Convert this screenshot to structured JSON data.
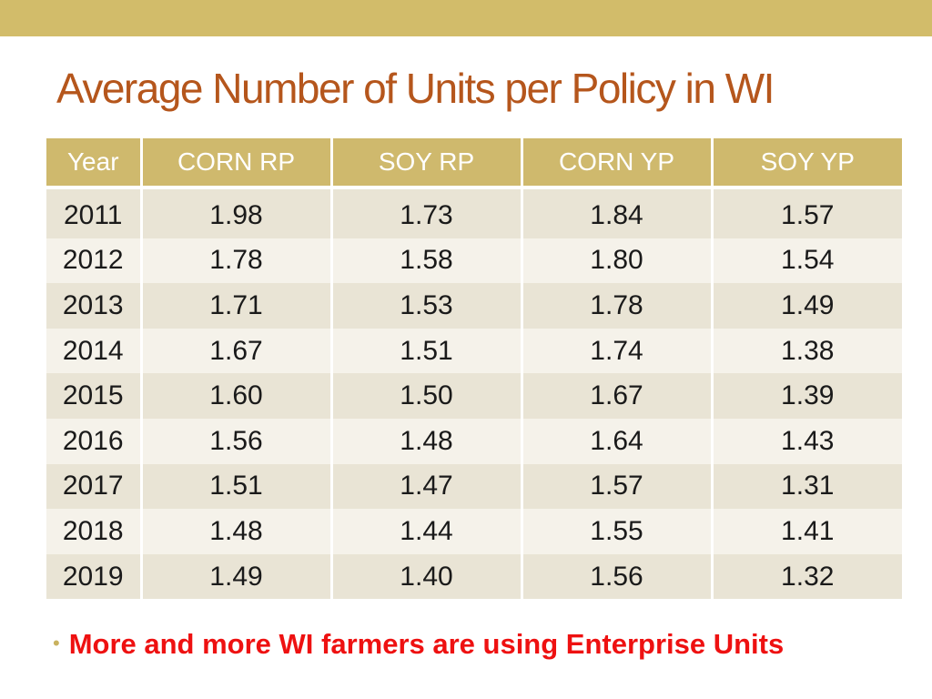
{
  "slide": {
    "title": "Average Number of Units per Policy in WI",
    "bullet": "More and more WI farmers are using Enterprise Units",
    "bullet_marker": "•",
    "colors": {
      "top_bar": "#d2bc6a",
      "title": "#b5561c",
      "header_bg": "#cfb96d",
      "row_odd": "#e9e4d5",
      "row_even": "#f5f2ea",
      "bullet_text": "#ee1111"
    }
  },
  "chart_data": {
    "type": "table",
    "columns": [
      "Year",
      "CORN RP",
      "SOY RP",
      "CORN YP",
      "SOY YP"
    ],
    "rows": [
      [
        "2011",
        "1.98",
        "1.73",
        "1.84",
        "1.57"
      ],
      [
        "2012",
        "1.78",
        "1.58",
        "1.80",
        "1.54"
      ],
      [
        "2013",
        "1.71",
        "1.53",
        "1.78",
        "1.49"
      ],
      [
        "2014",
        "1.67",
        "1.51",
        "1.74",
        "1.38"
      ],
      [
        "2015",
        "1.60",
        "1.50",
        "1.67",
        "1.39"
      ],
      [
        "2016",
        "1.56",
        "1.48",
        "1.64",
        "1.43"
      ],
      [
        "2017",
        "1.51",
        "1.47",
        "1.57",
        "1.31"
      ],
      [
        "2018",
        "1.48",
        "1.44",
        "1.55",
        "1.41"
      ],
      [
        "2019",
        "1.49",
        "1.40",
        "1.56",
        "1.32"
      ]
    ]
  }
}
